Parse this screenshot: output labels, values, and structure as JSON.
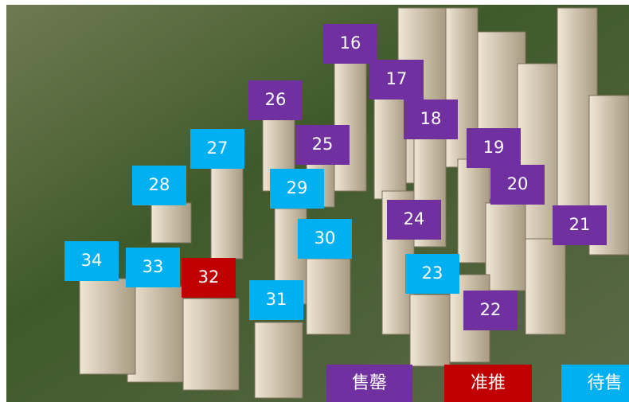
{
  "legend": [
    {
      "label": "售罄",
      "color": "#7030a0"
    },
    {
      "label": "准推",
      "color": "#c00000"
    },
    {
      "label": "待售",
      "color": "#00b0f0"
    }
  ],
  "buildings": [
    {
      "label": "16",
      "status": 0
    },
    {
      "label": "17",
      "status": 0
    },
    {
      "label": "18",
      "status": 0
    },
    {
      "label": "19",
      "status": 0
    },
    {
      "label": "20",
      "status": 0
    },
    {
      "label": "21",
      "status": 0
    },
    {
      "label": "22",
      "status": 0
    },
    {
      "label": "23",
      "status": 2
    },
    {
      "label": "24",
      "status": 0
    },
    {
      "label": "25",
      "status": 0
    },
    {
      "label": "26",
      "status": 0
    },
    {
      "label": "27",
      "status": 2
    },
    {
      "label": "28",
      "status": 2
    },
    {
      "label": "29",
      "status": 2
    },
    {
      "label": "30",
      "status": 2
    },
    {
      "label": "31",
      "status": 2
    },
    {
      "label": "32",
      "status": 1
    },
    {
      "label": "33",
      "status": 2
    },
    {
      "label": "34",
      "status": 2
    }
  ]
}
